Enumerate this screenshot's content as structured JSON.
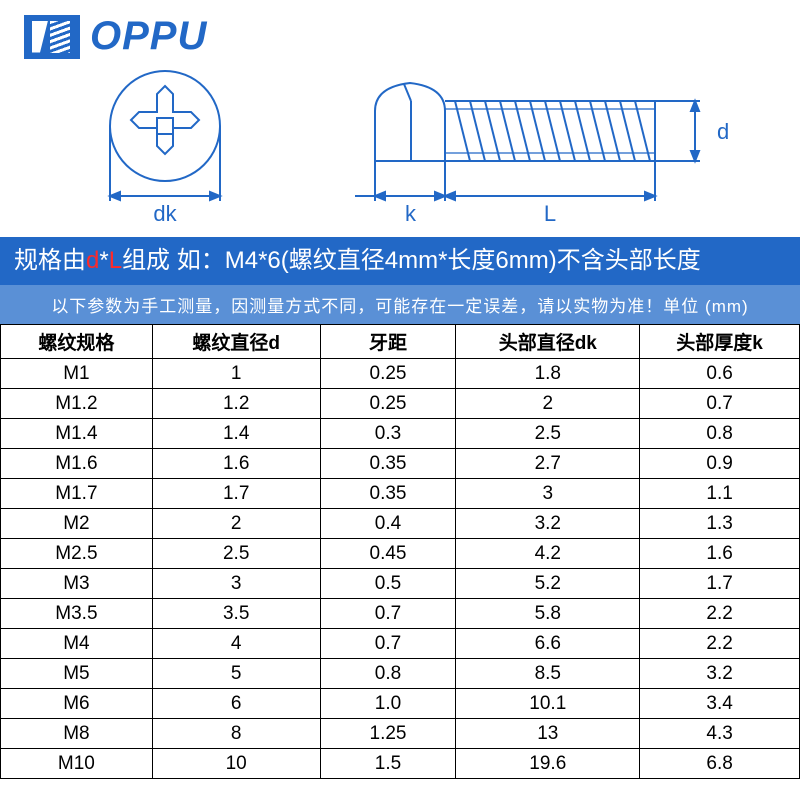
{
  "logo": {
    "text": "OPPU",
    "color": "#2268c6"
  },
  "diagram": {
    "stroke": "#2268c6",
    "labels": {
      "dk": "dk",
      "k": "k",
      "L": "L",
      "d": "d"
    },
    "label_fontsize": 22
  },
  "banner1": {
    "prefix": "规格由",
    "hl1": "d",
    "mid1": "*",
    "hl2": "L",
    "rest": "组成 如：M4*6(螺纹直径4mm*长度6mm)不含头部长度",
    "bg": "#2268c6",
    "hl_color": "#ff2a2a"
  },
  "banner2": {
    "text": "以下参数为手工测量，因测量方式不同，可能存在一定误差，请以实物为准！单位 (mm)",
    "bg": "#5a90d6"
  },
  "table": {
    "columns": [
      "螺纹规格",
      "螺纹直径d",
      "牙距",
      "头部直径dk",
      "头部厚度k"
    ],
    "rows": [
      [
        "M1",
        "1",
        "0.25",
        "1.8",
        "0.6"
      ],
      [
        "M1.2",
        "1.2",
        "0.25",
        "2",
        "0.7"
      ],
      [
        "M1.4",
        "1.4",
        "0.3",
        "2.5",
        "0.8"
      ],
      [
        "M1.6",
        "1.6",
        "0.35",
        "2.7",
        "0.9"
      ],
      [
        "M1.7",
        "1.7",
        "0.35",
        "3",
        "1.1"
      ],
      [
        "M2",
        "2",
        "0.4",
        "3.2",
        "1.3"
      ],
      [
        "M2.5",
        "2.5",
        "0.45",
        "4.2",
        "1.6"
      ],
      [
        "M3",
        "3",
        "0.5",
        "5.2",
        "1.7"
      ],
      [
        "M3.5",
        "3.5",
        "0.7",
        "5.8",
        "2.2"
      ],
      [
        "M4",
        "4",
        "0.7",
        "6.6",
        "2.2"
      ],
      [
        "M5",
        "5",
        "0.8",
        "8.5",
        "3.2"
      ],
      [
        "M6",
        "6",
        "1.0",
        "10.1",
        "3.4"
      ],
      [
        "M8",
        "8",
        "1.25",
        "13",
        "4.3"
      ],
      [
        "M10",
        "10",
        "1.5",
        "19.6",
        "6.8"
      ]
    ],
    "border_color": "#000000",
    "cell_fontsize": 19
  }
}
